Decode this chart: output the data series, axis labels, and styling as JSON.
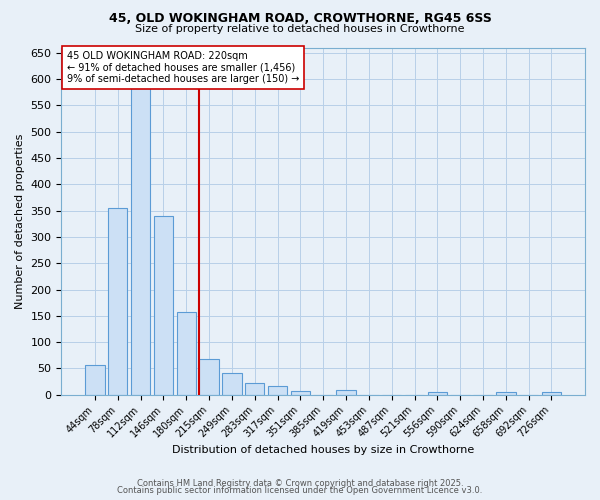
{
  "title_line1": "45, OLD WOKINGHAM ROAD, CROWTHORNE, RG45 6SS",
  "title_line2": "Size of property relative to detached houses in Crowthorne",
  "xlabel": "Distribution of detached houses by size in Crowthorne",
  "ylabel": "Number of detached properties",
  "bin_labels": [
    "44sqm",
    "78sqm",
    "112sqm",
    "146sqm",
    "180sqm",
    "215sqm",
    "249sqm",
    "283sqm",
    "317sqm",
    "351sqm",
    "385sqm",
    "419sqm",
    "453sqm",
    "487sqm",
    "521sqm",
    "556sqm",
    "590sqm",
    "624sqm",
    "658sqm",
    "692sqm",
    "726sqm"
  ],
  "bar_values": [
    57,
    355,
    620,
    340,
    157,
    68,
    42,
    22,
    16,
    8,
    0,
    9,
    0,
    0,
    0,
    5,
    0,
    0,
    5,
    0,
    5
  ],
  "bar_color_fill": "#cce0f5",
  "bar_color_edge": "#5b9bd5",
  "vline_color": "#cc0000",
  "annotation_title": "45 OLD WOKINGHAM ROAD: 220sqm",
  "annotation_line1": "← 91% of detached houses are smaller (1,456)",
  "annotation_line2": "9% of semi-detached houses are larger (150) →",
  "annotation_box_color": "#ffffff",
  "annotation_box_edge": "#cc0000",
  "ylim": [
    0,
    660
  ],
  "yticks": [
    0,
    50,
    100,
    150,
    200,
    250,
    300,
    350,
    400,
    450,
    500,
    550,
    600,
    650
  ],
  "background_color": "#e8f0f8",
  "grid_color": "#b8cfe8",
  "footer_line1": "Contains HM Land Registry data © Crown copyright and database right 2025.",
  "footer_line2": "Contains public sector information licensed under the Open Government Licence v3.0."
}
